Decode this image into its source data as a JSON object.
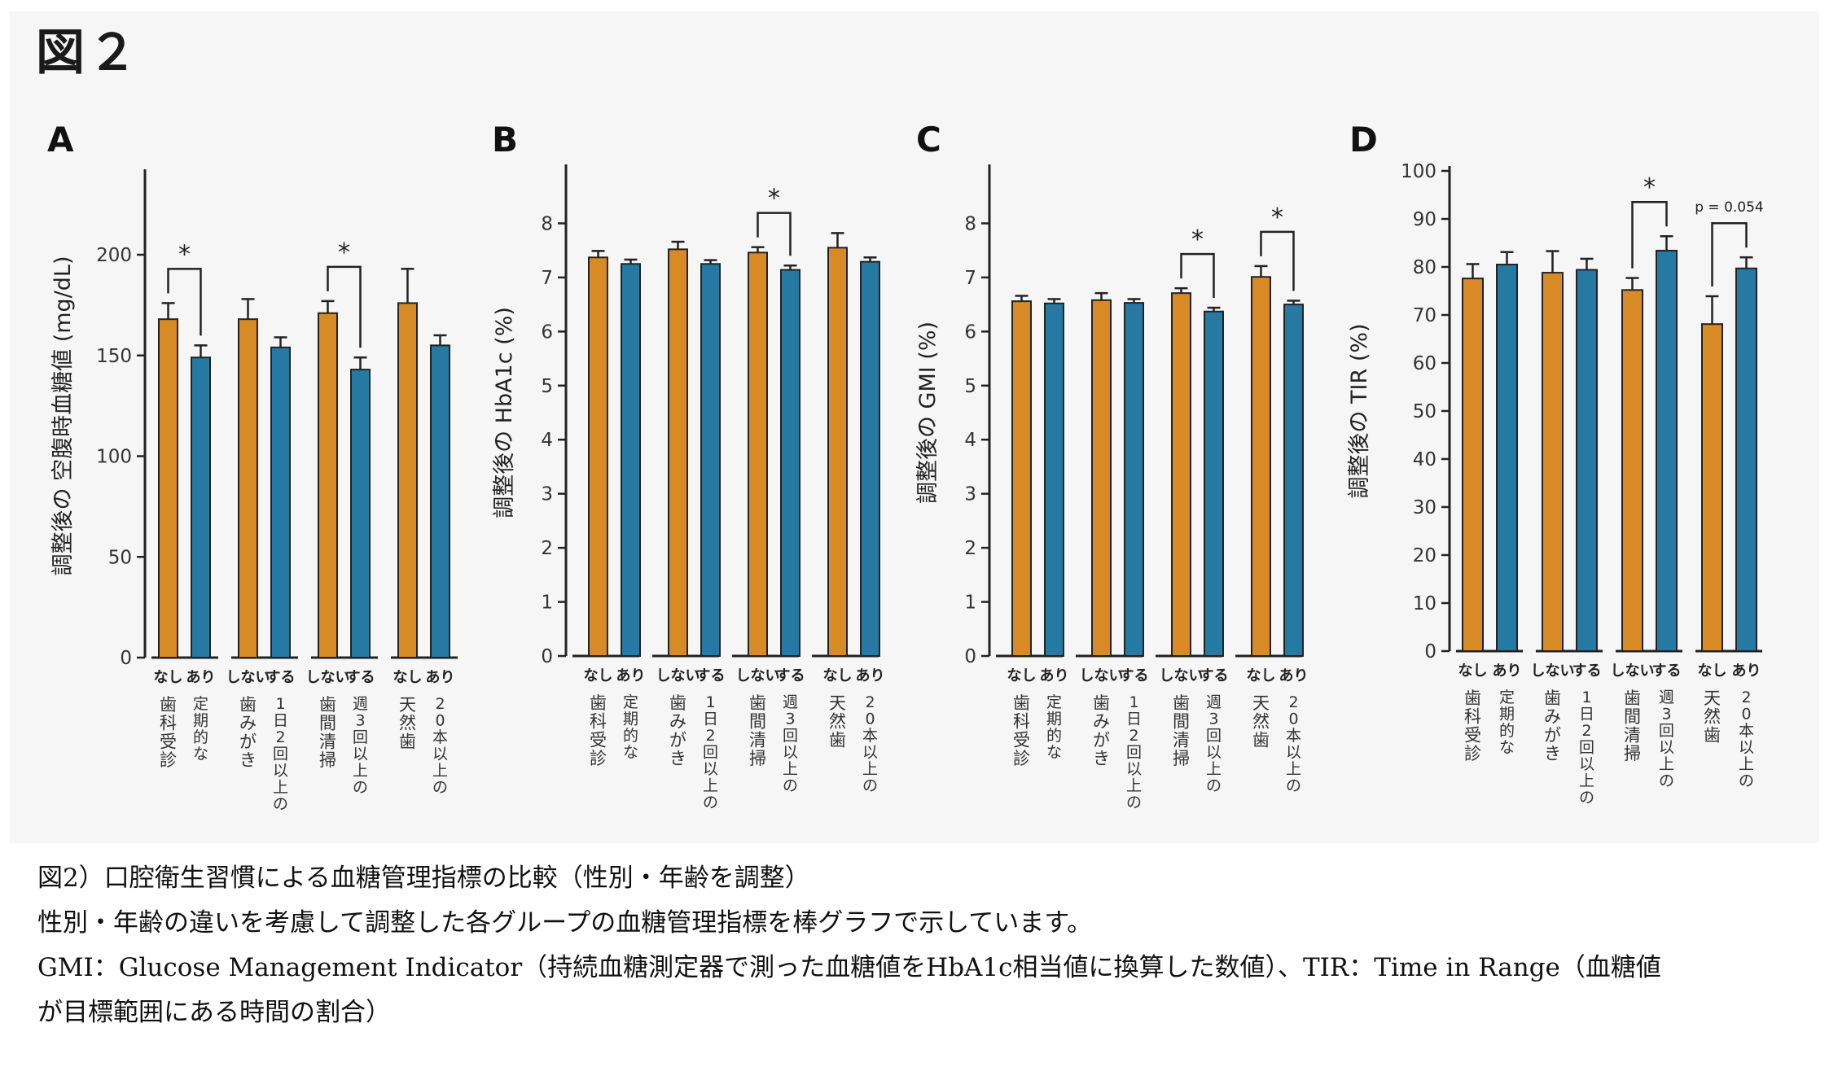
{
  "figure_title": "図２",
  "colors": {
    "group1": "#D88A25",
    "group2": "#2579A3",
    "axis": "#222222"
  },
  "chart_data": [
    {
      "panel": "A",
      "type": "bar",
      "ylabel": "調整後の 空腹時血糖値 (mg/dL)",
      "ylim": [
        0,
        240
      ],
      "yticks": [
        0,
        50,
        100,
        150,
        200
      ],
      "groups": [
        {
          "bars": [
            {
              "label": "なし",
              "value": 168,
              "err": 8
            },
            {
              "label": "あり",
              "value": 149,
              "err": 6
            }
          ],
          "category": [
            "歯科受診",
            "定期的な"
          ],
          "sig": "*"
        },
        {
          "bars": [
            {
              "label": "しない",
              "value": 168,
              "err": 10
            },
            {
              "label": "する",
              "value": 154,
              "err": 5
            }
          ],
          "category": [
            "歯みがき",
            "1日2回以上の"
          ],
          "sig": ""
        },
        {
          "bars": [
            {
              "label": "しない",
              "value": 171,
              "err": 6
            },
            {
              "label": "する",
              "value": 143,
              "err": 6
            }
          ],
          "category": [
            "歯間清掃",
            "週3回以上の"
          ],
          "sig": "*"
        },
        {
          "bars": [
            {
              "label": "なし",
              "value": 176,
              "err": 17
            },
            {
              "label": "あり",
              "value": 155,
              "err": 5
            }
          ],
          "category": [
            "天然歯",
            "20本以上の"
          ],
          "sig": ""
        }
      ]
    },
    {
      "panel": "B",
      "type": "bar",
      "ylabel": "調整後の HbA1c (%)",
      "ylim": [
        0,
        9
      ],
      "yticks": [
        0,
        1,
        2,
        3,
        4,
        5,
        6,
        7,
        8
      ],
      "groups": [
        {
          "bars": [
            {
              "label": "なし",
              "value": 7.37,
              "err": 0.12
            },
            {
              "label": "あり",
              "value": 7.25,
              "err": 0.08
            }
          ],
          "category": [
            "歯科受診",
            "定期的な"
          ],
          "sig": ""
        },
        {
          "bars": [
            {
              "label": "しない",
              "value": 7.52,
              "err": 0.14
            },
            {
              "label": "する",
              "value": 7.25,
              "err": 0.07
            }
          ],
          "category": [
            "歯みがき",
            "1日2回以上の"
          ],
          "sig": ""
        },
        {
          "bars": [
            {
              "label": "しない",
              "value": 7.46,
              "err": 0.1
            },
            {
              "label": "する",
              "value": 7.14,
              "err": 0.08
            }
          ],
          "category": [
            "歯間清掃",
            "週3回以上の"
          ],
          "sig": "*"
        },
        {
          "bars": [
            {
              "label": "なし",
              "value": 7.55,
              "err": 0.27
            },
            {
              "label": "あり",
              "value": 7.29,
              "err": 0.08
            }
          ],
          "category": [
            "天然歯",
            "20本以上の"
          ],
          "sig": ""
        }
      ]
    },
    {
      "panel": "C",
      "type": "bar",
      "ylabel": "調整後の GMI (%)",
      "ylim": [
        0,
        9
      ],
      "yticks": [
        0,
        1,
        2,
        3,
        4,
        5,
        6,
        7,
        8
      ],
      "groups": [
        {
          "bars": [
            {
              "label": "なし",
              "value": 6.56,
              "err": 0.1
            },
            {
              "label": "あり",
              "value": 6.52,
              "err": 0.08
            }
          ],
          "category": [
            "歯科受診",
            "定期的な"
          ],
          "sig": ""
        },
        {
          "bars": [
            {
              "label": "しない",
              "value": 6.58,
              "err": 0.13
            },
            {
              "label": "する",
              "value": 6.53,
              "err": 0.07
            }
          ],
          "category": [
            "歯みがき",
            "1日2回以上の"
          ],
          "sig": ""
        },
        {
          "bars": [
            {
              "label": "しない",
              "value": 6.71,
              "err": 0.09
            },
            {
              "label": "する",
              "value": 6.37,
              "err": 0.07
            }
          ],
          "category": [
            "歯間清掃",
            "週3回以上の"
          ],
          "sig": "*"
        },
        {
          "bars": [
            {
              "label": "なし",
              "value": 7.01,
              "err": 0.2
            },
            {
              "label": "あり",
              "value": 6.5,
              "err": 0.07
            }
          ],
          "category": [
            "天然歯",
            "20本以上の"
          ],
          "sig": "*"
        }
      ]
    },
    {
      "panel": "D",
      "type": "bar",
      "ylabel": "調整後の TIR (%)",
      "ylim": [
        0,
        100
      ],
      "yticks": [
        0,
        10,
        20,
        30,
        40,
        50,
        60,
        70,
        80,
        90,
        100
      ],
      "groups": [
        {
          "bars": [
            {
              "label": "なし",
              "value": 77.6,
              "err": 3
            },
            {
              "label": "あり",
              "value": 80.5,
              "err": 2.6
            }
          ],
          "category": [
            "歯科受診",
            "定期的な"
          ],
          "sig": ""
        },
        {
          "bars": [
            {
              "label": "しない",
              "value": 78.8,
              "err": 4.5
            },
            {
              "label": "する",
              "value": 79.4,
              "err": 2.3
            }
          ],
          "category": [
            "歯みがき",
            "1日2回以上の"
          ],
          "sig": ""
        },
        {
          "bars": [
            {
              "label": "しない",
              "value": 75.2,
              "err": 2.5
            },
            {
              "label": "する",
              "value": 83.4,
              "err": 3
            }
          ],
          "category": [
            "歯間清掃",
            "週3回以上の"
          ],
          "sig": "*"
        },
        {
          "bars": [
            {
              "label": "なし",
              "value": 68.1,
              "err": 5.8
            },
            {
              "label": "あり",
              "value": 79.7,
              "err": 2.3
            }
          ],
          "category": [
            "天然歯",
            "20本以上の"
          ],
          "sig": "p = 0.054"
        }
      ]
    }
  ],
  "caption": [
    "図2）口腔衛生習慣による血糖管理指標の比較（性別・年齢を調整）",
    "性別・年齢の違いを考慮して調整した各グループの血糖管理指標を棒グラフで示しています。",
    "GMI：Glucose Management Indicator（持続血糖測定器で測った血糖値をHbA1c相当値に換算した数値）、TIR：Time in Range（血糖値",
    "が目標範囲にある時間の割合）"
  ]
}
